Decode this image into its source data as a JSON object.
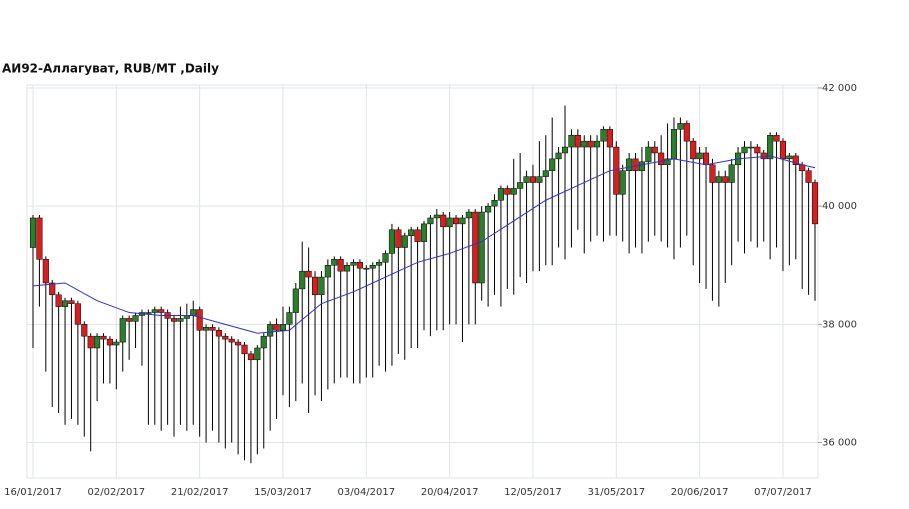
{
  "chart_data": {
    "type": "candlestick",
    "title": "АИ92-Аллагуват,  RUB/MT ,Daily",
    "categories": [
      "16/01/2017",
      null,
      null,
      null,
      null,
      null,
      null,
      null,
      null,
      null,
      null,
      null,
      null,
      "02/02/2017",
      null,
      null,
      null,
      null,
      null,
      null,
      null,
      null,
      null,
      null,
      null,
      null,
      "21/02/2017",
      null,
      null,
      null,
      null,
      null,
      null,
      null,
      null,
      null,
      null,
      null,
      null,
      "15/03/2017",
      null,
      null,
      null,
      null,
      null,
      null,
      null,
      null,
      null,
      null,
      null,
      null,
      "03/04/2017",
      null,
      null,
      null,
      null,
      null,
      null,
      null,
      null,
      null,
      null,
      null,
      null,
      "20/04/2017",
      null,
      null,
      null,
      null,
      null,
      null,
      null,
      null,
      null,
      null,
      null,
      null,
      "12/05/2017",
      null,
      null,
      null,
      null,
      null,
      null,
      null,
      null,
      null,
      null,
      null,
      null,
      "31/05/2017",
      null,
      null,
      null,
      null,
      null,
      null,
      null,
      null,
      null,
      null,
      null,
      null,
      "20/06/2017",
      null,
      null,
      null,
      null,
      null,
      null,
      null,
      null,
      null,
      null,
      null,
      null,
      "07/07/2017",
      null,
      null,
      null,
      null,
      null
    ],
    "series": [
      {
        "up_color": "#2d7d2d",
        "down_color": "#d62020",
        "open": [
          39300,
          39800,
          39100,
          38700,
          38500,
          38300,
          38400,
          38350,
          38000,
          37800,
          37600,
          37800,
          37750,
          37650,
          37700,
          38100,
          38050,
          38150,
          38200,
          38200,
          38250,
          38200,
          38100,
          38050,
          38100,
          38150,
          38250,
          37900,
          37950,
          37900,
          37800,
          37750,
          37700,
          37650,
          37500,
          37400,
          37600,
          37800,
          38000,
          37900,
          38000,
          38200,
          38600,
          38900,
          38800,
          38500,
          38800,
          39000,
          39100,
          38900,
          39000,
          39050,
          38950,
          38950,
          39000,
          39050,
          39200,
          39600,
          39300,
          39500,
          39600,
          39400,
          39700,
          39800,
          39850,
          39650,
          39800,
          39700,
          39800,
          39900,
          38700,
          39900,
          40000,
          40100,
          40300,
          40200,
          40300,
          40400,
          40500,
          40400,
          40500,
          40600,
          40800,
          40900,
          41000,
          41200,
          41000,
          41100,
          41000,
          41100,
          41300,
          41000,
          40200,
          40600,
          40800,
          40600,
          40750,
          41000,
          40900,
          40700,
          40800,
          41300,
          41400,
          41100,
          40800,
          40900,
          40700,
          40400,
          40500,
          40400,
          40700,
          40900,
          41000,
          41000,
          40900,
          40800,
          41200,
          41100,
          40800,
          40850,
          40700,
          40600,
          40400
        ],
        "high": [
          39850,
          39850,
          39150,
          38750,
          38550,
          38450,
          38450,
          38400,
          38050,
          37850,
          37850,
          37850,
          37800,
          37750,
          38150,
          38150,
          38200,
          38250,
          38250,
          38300,
          38300,
          38250,
          38150,
          38300,
          38350,
          38400,
          38300,
          38000,
          38000,
          37950,
          37850,
          37800,
          37750,
          37700,
          37550,
          37650,
          37850,
          38050,
          38100,
          38300,
          38300,
          38700,
          39400,
          39300,
          38900,
          38900,
          39100,
          39150,
          39150,
          39050,
          39100,
          39100,
          39000,
          39050,
          39100,
          39250,
          39700,
          39650,
          39550,
          39650,
          39650,
          39750,
          39850,
          39950,
          39900,
          39900,
          39850,
          39850,
          39950,
          39950,
          40000,
          40050,
          40200,
          40350,
          40350,
          40800,
          40900,
          40600,
          40700,
          41100,
          41200,
          41500,
          41000,
          41700,
          41300,
          41300,
          41200,
          41200,
          41200,
          41350,
          41350,
          41100,
          40700,
          40900,
          40900,
          41000,
          41100,
          41100,
          41200,
          41400,
          41500,
          41500,
          41450,
          41150,
          41000,
          41000,
          40800,
          40600,
          40600,
          40800,
          41000,
          41100,
          41100,
          41050,
          40950,
          41250,
          41250,
          41150,
          40900,
          40900,
          40750,
          40650,
          40450
        ],
        "low": [
          37600,
          38300,
          37200,
          36600,
          36500,
          36300,
          36400,
          36300,
          36100,
          35850,
          36700,
          37000,
          37000,
          36900,
          37200,
          37400,
          37600,
          37300,
          36300,
          36300,
          36200,
          36300,
          36100,
          36300,
          36200,
          36300,
          36100,
          36000,
          36200,
          36000,
          35900,
          36000,
          35800,
          35700,
          35650,
          35800,
          35900,
          36200,
          36400,
          36800,
          36600,
          36700,
          37000,
          36500,
          36800,
          36700,
          36900,
          37000,
          37100,
          37100,
          37000,
          37000,
          37100,
          37100,
          37300,
          37200,
          37300,
          37500,
          37400,
          37600,
          37600,
          37900,
          37800,
          37900,
          37900,
          38000,
          38000,
          37700,
          38000,
          38000,
          38400,
          38300,
          38500,
          38300,
          38600,
          38500,
          38800,
          38700,
          38900,
          38900,
          39000,
          39000,
          39300,
          39100,
          39300,
          39600,
          39200,
          39400,
          39500,
          39400,
          39500,
          39500,
          39400,
          39200,
          39300,
          39200,
          39400,
          39500,
          39400,
          39300,
          39100,
          39300,
          39500,
          39000,
          38700,
          38600,
          38400,
          38300,
          38700,
          39000,
          39400,
          39200,
          39400,
          39300,
          39400,
          39100,
          39300,
          38900,
          39000,
          39100,
          38600,
          38500,
          38400
        ],
        "close": [
          39800,
          39100,
          38700,
          38500,
          38300,
          38400,
          38350,
          38000,
          37800,
          37600,
          37800,
          37750,
          37650,
          37700,
          38100,
          38050,
          38150,
          38200,
          38200,
          38250,
          38200,
          38100,
          38050,
          38100,
          38150,
          38250,
          37900,
          37950,
          37900,
          37800,
          37750,
          37700,
          37650,
          37500,
          37400,
          37600,
          37800,
          38000,
          37900,
          38000,
          38200,
          38600,
          38900,
          38800,
          38500,
          38800,
          39000,
          39100,
          38900,
          39000,
          39050,
          38950,
          38950,
          39000,
          39050,
          39200,
          39600,
          39300,
          39500,
          39600,
          39400,
          39700,
          39800,
          39850,
          39650,
          39800,
          39700,
          39800,
          39900,
          38700,
          39900,
          40000,
          40100,
          40300,
          40200,
          40300,
          40400,
          40500,
          40400,
          40500,
          40600,
          40800,
          40900,
          41000,
          41200,
          41000,
          41100,
          41000,
          41100,
          41300,
          41000,
          40200,
          40600,
          40800,
          40600,
          40750,
          41000,
          40900,
          40700,
          40800,
          41300,
          41400,
          41100,
          40800,
          40900,
          40700,
          40400,
          40500,
          40400,
          40700,
          40900,
          41000,
          41000,
          40900,
          40800,
          41200,
          41100,
          40800,
          40850,
          40700,
          40600,
          40400,
          39700
        ]
      },
      {
        "color": "#3030d0",
        "x": [
          0,
          5,
          10,
          15,
          20,
          25,
          30,
          35,
          40,
          45,
          50,
          55,
          60,
          65,
          70,
          75,
          80,
          85,
          90,
          95,
          100,
          105,
          110,
          115,
          120,
          122
        ],
        "values": [
          38650,
          38700,
          38400,
          38200,
          38150,
          38150,
          38000,
          37850,
          37900,
          38350,
          38550,
          38800,
          39050,
          39200,
          39400,
          39750,
          40100,
          40350,
          40600,
          40700,
          40800,
          40700,
          40800,
          40850,
          40700,
          40650
        ]
      }
    ],
    "ylim": [
      35400,
      42050
    ],
    "yticks": [
      {
        "value": 36000,
        "label": "36 000"
      },
      {
        "value": 38000,
        "label": "38 000"
      },
      {
        "value": 40000,
        "label": "40 000"
      },
      {
        "value": 42000,
        "label": "42 000"
      }
    ],
    "grid": true
  }
}
